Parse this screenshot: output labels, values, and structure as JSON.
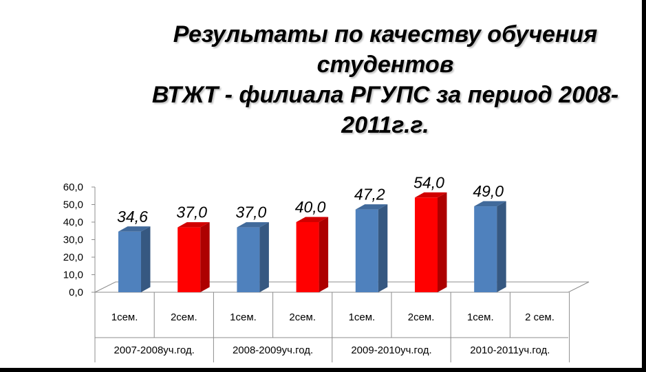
{
  "chart_data": {
    "type": "bar",
    "title": "Результаты по качеству обучения студентов ВТЖТ - филиала РГУПС за  период 2008-2011г.г.",
    "title_lines": [
      "Результаты по качеству обучения",
      "студентов",
      "ВТЖТ - филиала РГУПС за  период 2008-",
      "2011г.г."
    ],
    "categories": [
      "1сем.",
      "2сем.",
      "1сем.",
      "2сем.",
      "1сем.",
      "2сем.",
      "1сем.",
      "2 сем."
    ],
    "groups": [
      "2007-2008уч.год.",
      "2008-2009уч.год.",
      "2009-2010уч.год.",
      "2010-2011уч.год."
    ],
    "values": [
      34.6,
      37.0,
      37.0,
      40.0,
      47.2,
      54.0,
      49.0,
      null
    ],
    "data_labels": [
      "34,6",
      "37,0",
      "37,0",
      "40,0",
      "47,2",
      "54,0",
      "49,0",
      ""
    ],
    "bar_colors": [
      "#4f81bd",
      "#ff0000",
      "#4f81bd",
      "#ff0000",
      "#4f81bd",
      "#ff0000",
      "#4f81bd",
      "#ff0000"
    ],
    "y_ticks": [
      "0,0",
      "10,0",
      "20,0",
      "30,0",
      "40,0",
      "50,0",
      "60,0"
    ],
    "ylim": [
      0,
      60
    ],
    "xlabel": "",
    "ylabel": "",
    "grid": false,
    "legend": "none"
  }
}
